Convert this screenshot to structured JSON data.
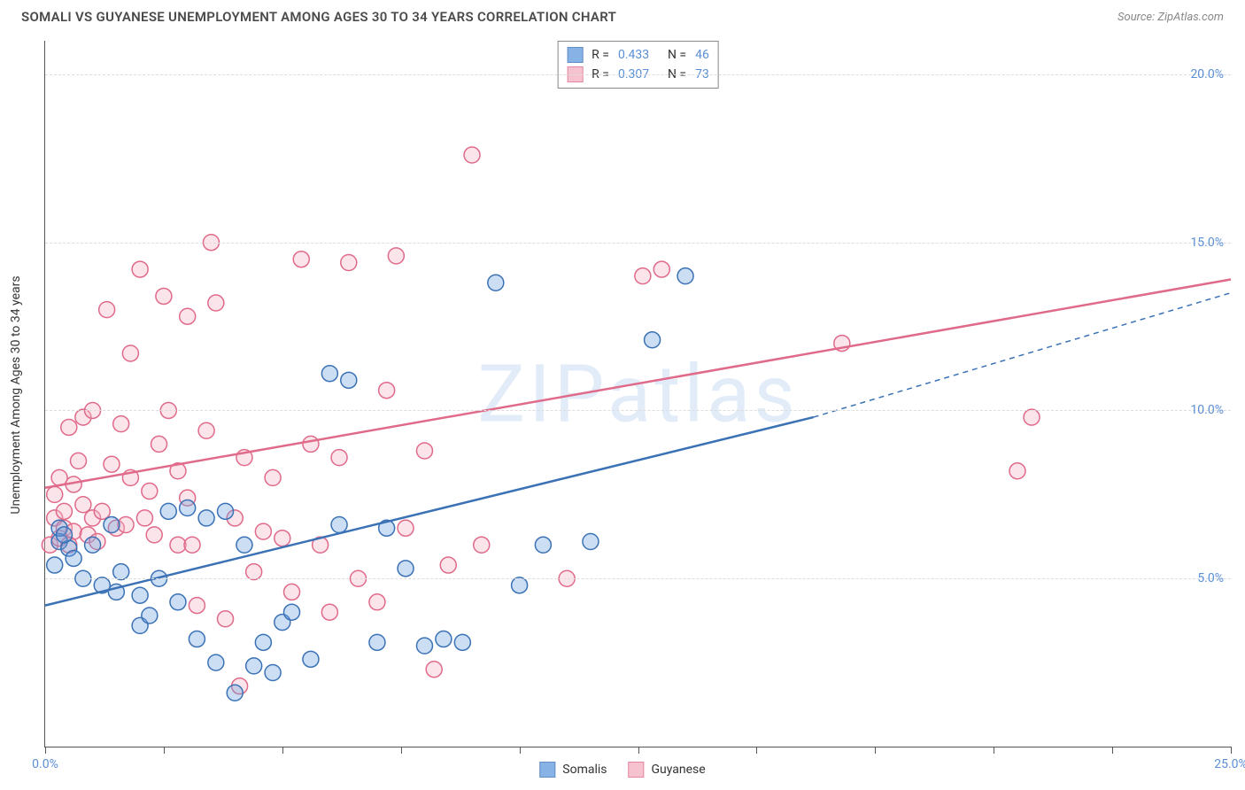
{
  "header": {
    "title": "SOMALI VS GUYANESE UNEMPLOYMENT AMONG AGES 30 TO 34 YEARS CORRELATION CHART",
    "source": "Source: ZipAtlas.com"
  },
  "chart": {
    "type": "scatter",
    "ylabel": "Unemployment Among Ages 30 to 34 years",
    "watermark": "ZIPatlas",
    "background_color": "#ffffff",
    "grid_color": "#dddddd",
    "axis_color": "#555555",
    "label_color": "#5b8fd6",
    "label_fontsize": 14,
    "title_fontsize": 15,
    "xlim": [
      0,
      25
    ],
    "ylim": [
      0,
      21
    ],
    "xticks": [
      0,
      2.5,
      5,
      7.5,
      10,
      12.5,
      15,
      17.5,
      20,
      22.5,
      25
    ],
    "xtick_labels": {
      "0": "0.0%",
      "25": "25.0%"
    },
    "yticks": [
      5,
      10,
      15,
      20
    ],
    "ytick_labels": [
      "5.0%",
      "10.0%",
      "15.0%",
      "20.0%"
    ],
    "marker_radius": 9,
    "marker_fill_opacity": 0.35,
    "marker_stroke_width": 1.5,
    "trend_line_width": 2.5,
    "series": {
      "somalis": {
        "label": "Somalis",
        "color": "#6aa0e0",
        "stroke": "#3b72b5",
        "R": "0.433",
        "N": "46",
        "trend": {
          "x1": 0,
          "y1": 4.2,
          "x2": 16.2,
          "y2": 9.8,
          "dashed_extend_to_x": 25,
          "dashed_extend_to_y": 13.5
        },
        "points": [
          [
            0.2,
            5.4
          ],
          [
            0.3,
            6.1
          ],
          [
            0.3,
            6.5
          ],
          [
            0.5,
            5.9
          ],
          [
            0.8,
            5.0
          ],
          [
            1.0,
            6.0
          ],
          [
            1.2,
            4.8
          ],
          [
            1.4,
            6.6
          ],
          [
            1.5,
            4.6
          ],
          [
            1.6,
            5.2
          ],
          [
            2.0,
            3.6
          ],
          [
            2.0,
            4.5
          ],
          [
            2.2,
            3.9
          ],
          [
            2.4,
            5.0
          ],
          [
            2.6,
            7.0
          ],
          [
            2.8,
            4.3
          ],
          [
            3.0,
            7.1
          ],
          [
            3.2,
            3.2
          ],
          [
            3.4,
            6.8
          ],
          [
            3.6,
            2.5
          ],
          [
            3.8,
            7.0
          ],
          [
            4.0,
            1.6
          ],
          [
            4.2,
            6.0
          ],
          [
            4.4,
            2.4
          ],
          [
            4.6,
            3.1
          ],
          [
            4.8,
            2.2
          ],
          [
            5.0,
            3.7
          ],
          [
            5.2,
            4.0
          ],
          [
            5.6,
            2.6
          ],
          [
            6.0,
            11.1
          ],
          [
            6.2,
            6.6
          ],
          [
            6.4,
            10.9
          ],
          [
            7.0,
            3.1
          ],
          [
            7.2,
            6.5
          ],
          [
            7.6,
            5.3
          ],
          [
            8.0,
            3.0
          ],
          [
            8.4,
            3.2
          ],
          [
            8.8,
            3.1
          ],
          [
            9.5,
            13.8
          ],
          [
            10.0,
            4.8
          ],
          [
            10.5,
            6.0
          ],
          [
            11.5,
            6.1
          ],
          [
            12.8,
            12.1
          ],
          [
            13.5,
            14.0
          ],
          [
            0.4,
            6.3
          ],
          [
            0.6,
            5.6
          ]
        ]
      },
      "guyanese": {
        "label": "Guyanese",
        "color": "#f4b4c4",
        "stroke": "#e06a8a",
        "R": "0.307",
        "N": "73",
        "trend": {
          "x1": 0,
          "y1": 7.7,
          "x2": 25,
          "y2": 13.9
        },
        "points": [
          [
            0.1,
            6.0
          ],
          [
            0.2,
            6.8
          ],
          [
            0.2,
            7.5
          ],
          [
            0.3,
            8.0
          ],
          [
            0.3,
            6.2
          ],
          [
            0.4,
            7.0
          ],
          [
            0.4,
            6.5
          ],
          [
            0.5,
            9.5
          ],
          [
            0.6,
            7.8
          ],
          [
            0.6,
            6.4
          ],
          [
            0.7,
            8.5
          ],
          [
            0.8,
            7.2
          ],
          [
            0.8,
            9.8
          ],
          [
            1.0,
            6.8
          ],
          [
            1.0,
            10.0
          ],
          [
            1.2,
            7.0
          ],
          [
            1.3,
            13.0
          ],
          [
            1.4,
            8.4
          ],
          [
            1.5,
            6.5
          ],
          [
            1.6,
            9.6
          ],
          [
            1.8,
            8.0
          ],
          [
            1.8,
            11.7
          ],
          [
            2.0,
            14.2
          ],
          [
            2.1,
            6.8
          ],
          [
            2.2,
            7.6
          ],
          [
            2.4,
            9.0
          ],
          [
            2.5,
            13.4
          ],
          [
            2.6,
            10.0
          ],
          [
            2.8,
            8.2
          ],
          [
            2.8,
            6.0
          ],
          [
            3.0,
            12.8
          ],
          [
            3.0,
            7.4
          ],
          [
            3.2,
            4.2
          ],
          [
            3.4,
            9.4
          ],
          [
            3.5,
            15.0
          ],
          [
            3.6,
            13.2
          ],
          [
            3.8,
            3.8
          ],
          [
            4.0,
            6.8
          ],
          [
            4.2,
            8.6
          ],
          [
            4.4,
            5.2
          ],
          [
            4.6,
            6.4
          ],
          [
            4.8,
            8.0
          ],
          [
            5.0,
            6.2
          ],
          [
            5.2,
            4.6
          ],
          [
            5.4,
            14.5
          ],
          [
            5.6,
            9.0
          ],
          [
            5.8,
            6.0
          ],
          [
            6.0,
            4.0
          ],
          [
            6.2,
            8.6
          ],
          [
            6.4,
            14.4
          ],
          [
            6.6,
            5.0
          ],
          [
            7.0,
            4.3
          ],
          [
            7.2,
            10.6
          ],
          [
            7.4,
            14.6
          ],
          [
            7.6,
            6.5
          ],
          [
            8.0,
            8.8
          ],
          [
            8.2,
            2.3
          ],
          [
            8.5,
            5.4
          ],
          [
            9.0,
            17.6
          ],
          [
            9.2,
            6.0
          ],
          [
            11.0,
            5.0
          ],
          [
            12.6,
            14.0
          ],
          [
            13.0,
            14.2
          ],
          [
            16.8,
            12.0
          ],
          [
            20.5,
            8.2
          ],
          [
            20.8,
            9.8
          ],
          [
            0.5,
            6.0
          ],
          [
            0.9,
            6.3
          ],
          [
            1.1,
            6.1
          ],
          [
            1.7,
            6.6
          ],
          [
            2.3,
            6.3
          ],
          [
            3.1,
            6.0
          ],
          [
            4.1,
            1.8
          ]
        ]
      }
    }
  },
  "legend_top": {
    "r_prefix": "R =",
    "n_prefix": "N ="
  },
  "legend_bottom": {
    "items": [
      "Somalis",
      "Guyanese"
    ]
  }
}
